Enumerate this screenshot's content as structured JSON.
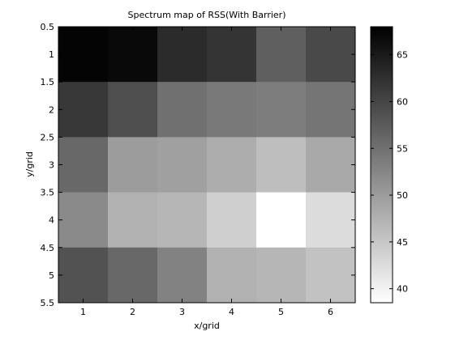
{
  "chart_data": {
    "type": "heatmap",
    "title": "Spectrum map of RSS(With Barrier)",
    "xlabel": "x/grid",
    "ylabel": "y/grid",
    "x": [
      1,
      2,
      3,
      4,
      5,
      6
    ],
    "y": [
      1,
      2,
      3,
      4,
      5
    ],
    "xlim": [
      0.5,
      6.5
    ],
    "ylim": [
      0.5,
      5.5
    ],
    "y_direction": "down",
    "xticks": [
      "1",
      "2",
      "3",
      "4",
      "5",
      "6"
    ],
    "yticks": [
      "0.5",
      "1",
      "1.5",
      "2",
      "2.5",
      "3",
      "3.5",
      "4",
      "4.5",
      "5",
      "5.5"
    ],
    "values": [
      [
        67.5,
        67.0,
        63.0,
        62.0,
        57.0,
        59.5
      ],
      [
        61.5,
        59.0,
        55.0,
        54.0,
        53.5,
        54.5
      ],
      [
        56.0,
        50.0,
        49.5,
        48.0,
        46.0,
        48.5
      ],
      [
        52.0,
        47.5,
        47.0,
        44.0,
        38.5,
        42.5
      ],
      [
        58.5,
        56.0,
        53.0,
        47.5,
        47.0,
        45.5
      ]
    ],
    "colormap": "gray-reversed",
    "colorbar": {
      "min": 38.5,
      "max": 68,
      "ticks": [
        "40",
        "45",
        "50",
        "55",
        "60",
        "65"
      ],
      "color_low": "#ffffff",
      "color_high": "#000000"
    },
    "grid": false
  }
}
